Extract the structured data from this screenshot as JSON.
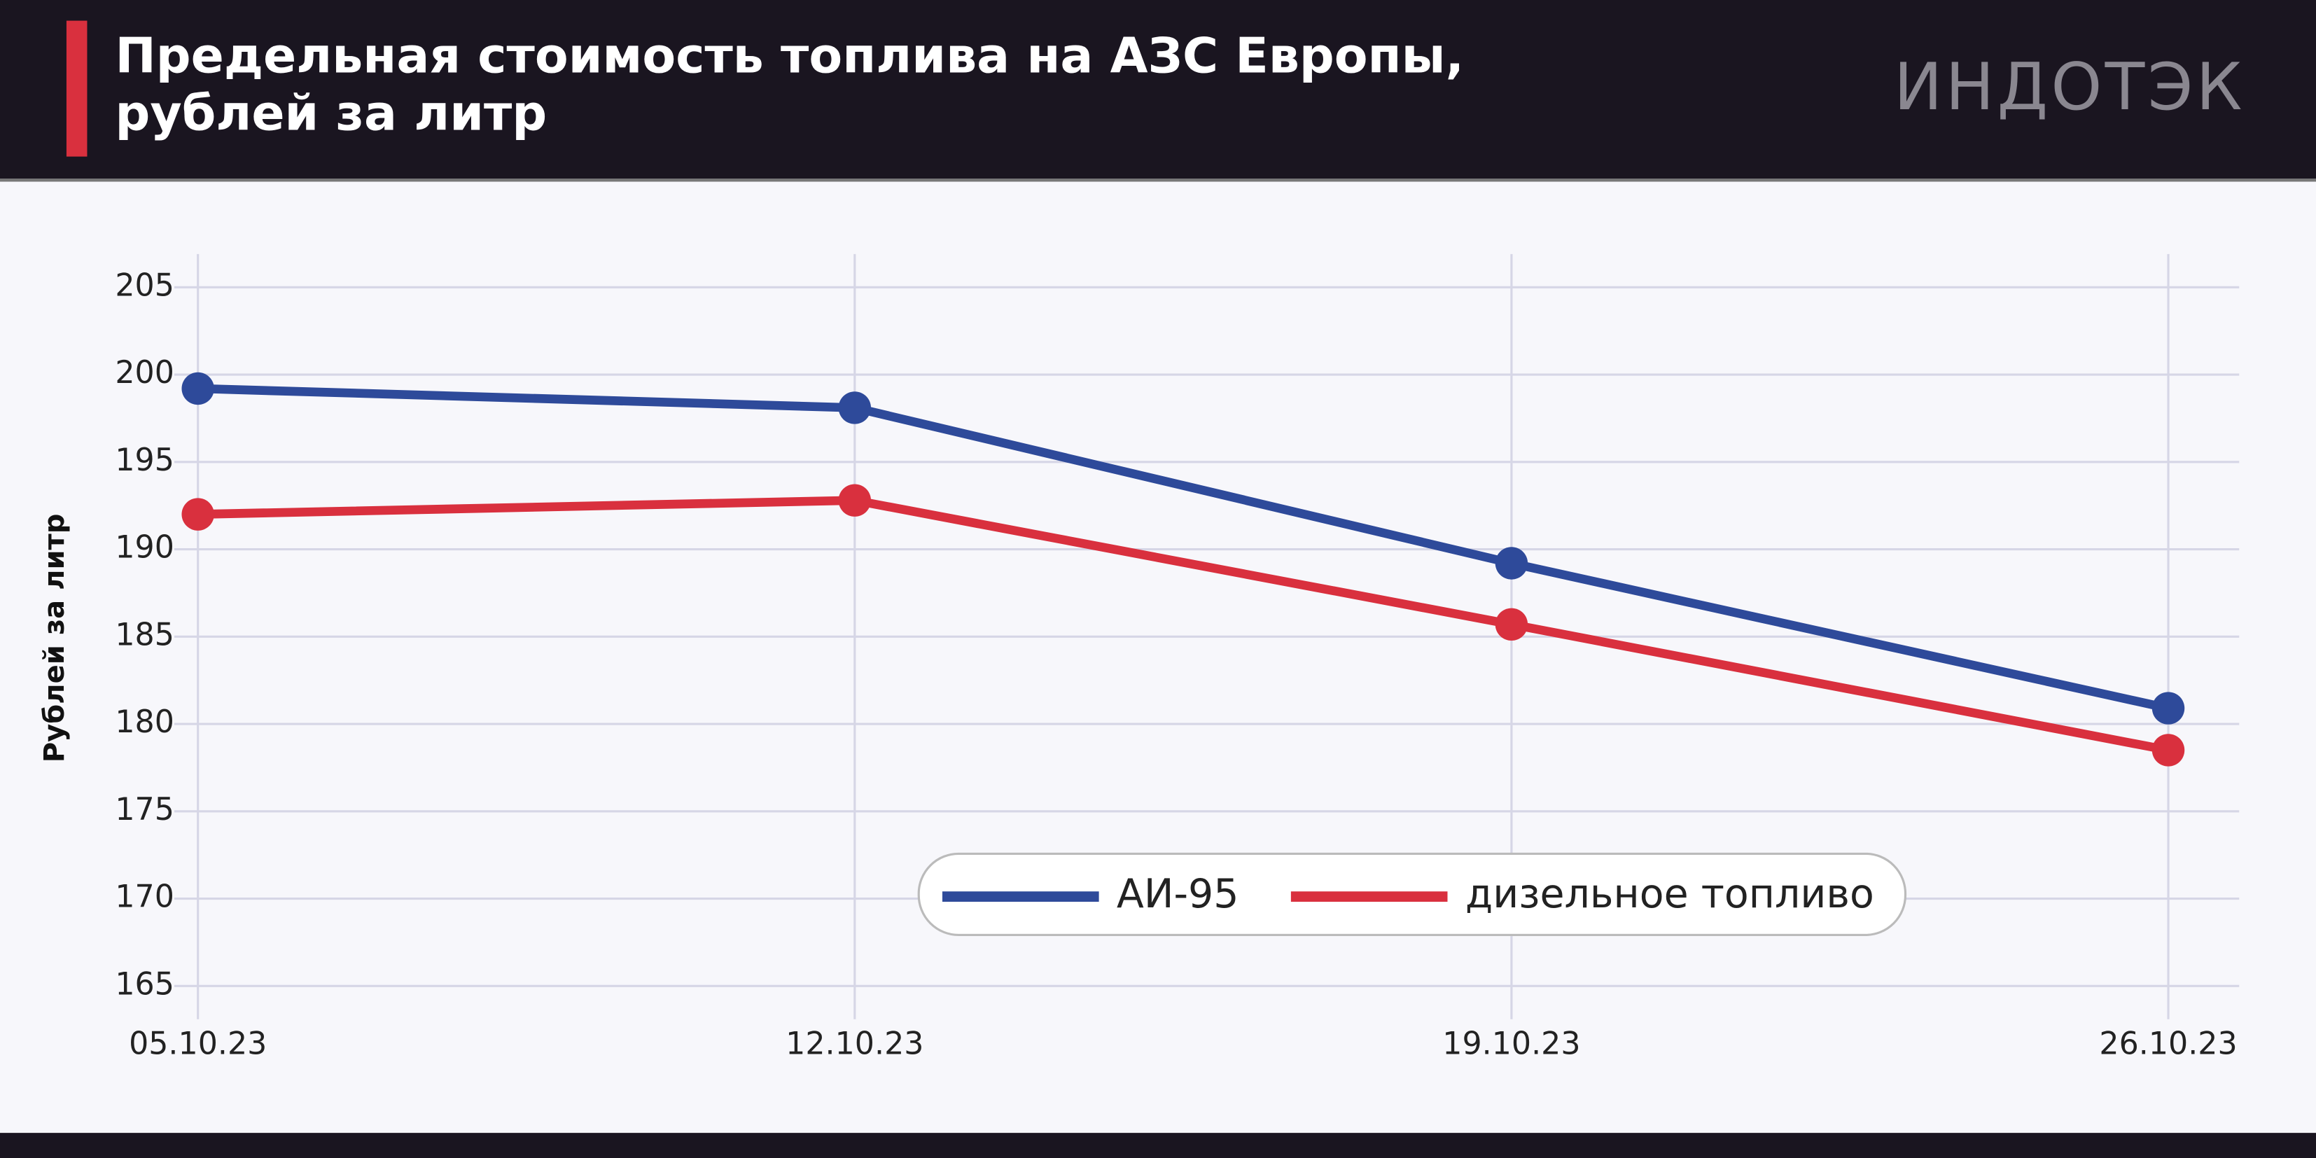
{
  "chart_data": {
    "type": "line",
    "title": [
      "Предельная стоимость топлива на АЗС Европы,",
      "рублей за литр"
    ],
    "logo": "ИНДОТЭК",
    "y_label": "Рублей за литр",
    "categories": [
      "05.10.23",
      "12.10.23",
      "19.10.23",
      "26.10.23"
    ],
    "series": [
      {
        "name": "АИ-95",
        "color": "#2e4a9a",
        "values": [
          199.2,
          198.1,
          189.2,
          180.9
        ]
      },
      {
        "name": "дизельное топливо",
        "color": "#d9303e",
        "values": [
          192.0,
          192.8,
          185.7,
          178.5
        ]
      }
    ],
    "ylim": [
      163.1,
      206.9
    ],
    "yticks": [
      165,
      170,
      175,
      180,
      185,
      190,
      195,
      200,
      205
    ],
    "grid": true,
    "legend": "bottom"
  }
}
